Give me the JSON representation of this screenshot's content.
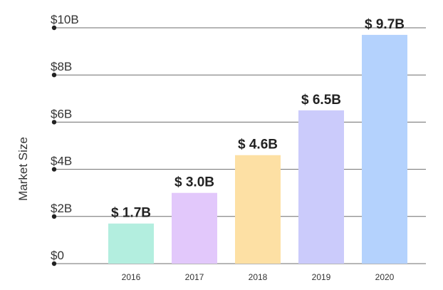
{
  "chart_data": {
    "type": "bar",
    "categories": [
      "2016",
      "2017",
      "2018",
      "2019",
      "2020"
    ],
    "values": [
      1.7,
      3.0,
      4.6,
      6.5,
      9.7
    ],
    "data_labels": [
      "$ 1.7B",
      "$ 3.0B",
      "$ 4.6B",
      "$ 6.5B",
      "$ 9.7B"
    ],
    "bar_colors": [
      "#b3eedf",
      "#e2c8fb",
      "#fde0a4",
      "#cbcbfb",
      "#b4d2fd"
    ],
    "ylabel": "Market Size",
    "xlabel": "",
    "title": "",
    "ylim": [
      0,
      10
    ],
    "y_ticks": [
      0,
      2,
      4,
      6,
      8,
      10
    ],
    "y_tick_labels": [
      "$0",
      "$2B",
      "$4B",
      "$6B",
      "$8B",
      "$10B"
    ],
    "grid": true,
    "legend": "none",
    "colors": {
      "grid": "#6e6e6e",
      "text": "#333333",
      "data_label": "#222222"
    }
  }
}
